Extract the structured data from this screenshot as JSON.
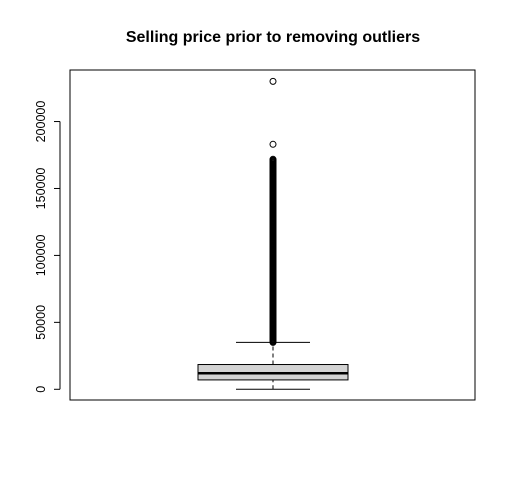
{
  "chart_data": {
    "type": "boxplot",
    "title": "Selling price prior to removing outliers",
    "xlabel": "",
    "ylabel": "",
    "ylim": [
      -8000,
      238500
    ],
    "yticks": [
      0,
      50000,
      100000,
      150000,
      200000
    ],
    "ytick_labels": [
      "0",
      "50000",
      "100000",
      "150000",
      "200000"
    ],
    "box": {
      "whisker_low": 0,
      "q1": 7000,
      "median": 12000,
      "q3": 18500,
      "whisker_high": 35000
    },
    "outliers": {
      "dense_range": [
        35000,
        172000
      ],
      "sparse_points": [
        183000,
        230000
      ]
    },
    "box_fill": "#d3d3d3"
  }
}
